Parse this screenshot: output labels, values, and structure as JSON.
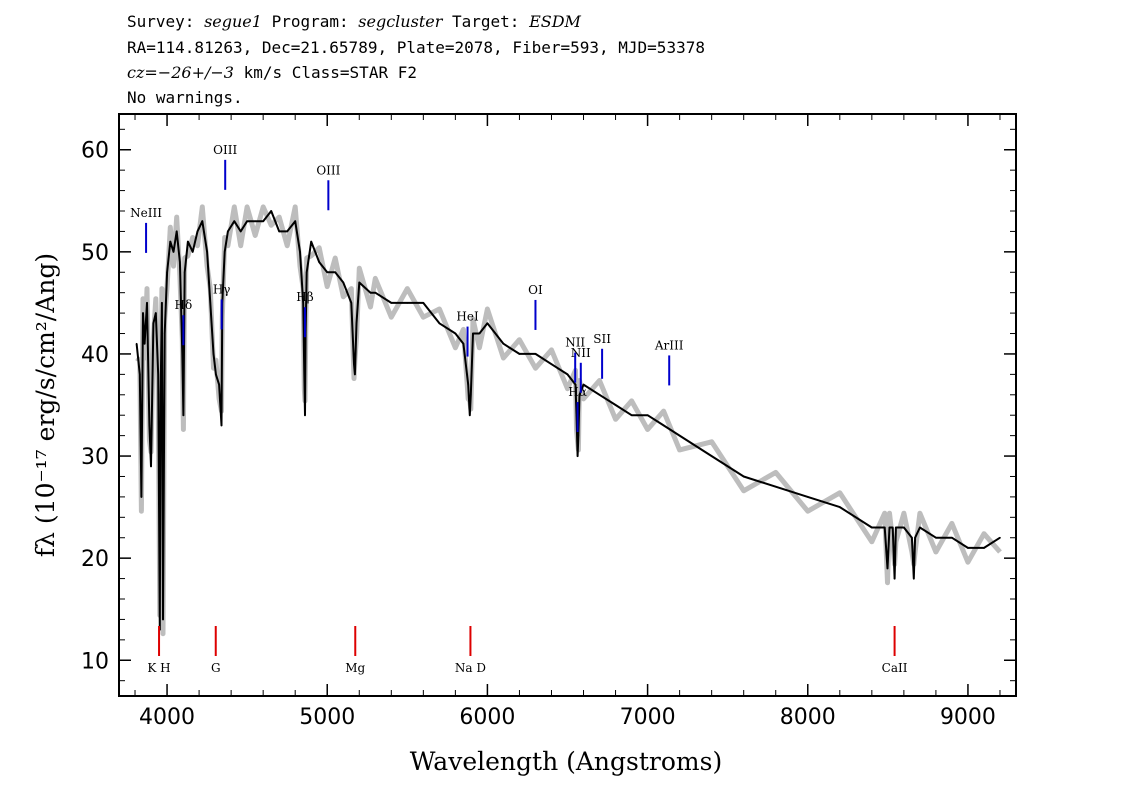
{
  "header": {
    "line1": {
      "survey_label": "Survey:",
      "survey": "segue1",
      "program_label": "Program:",
      "program": "segcluster",
      "target_label": "Target:",
      "target": "ESDM"
    },
    "line2": "RA=114.81263, Dec=21.65789, Plate=2078, Fiber=593, MJD=53378",
    "line3": {
      "cz": "cz=−26+/−3",
      "rest": " km/s Class=STAR F2"
    },
    "line4": "No warnings."
  },
  "chart_data": {
    "type": "line",
    "xlabel": "Wavelength (Angstroms)",
    "ylabel": "fλ (10⁻¹⁷ erg/s/cm²/Ang)",
    "xlim": [
      3700,
      9300
    ],
    "ylim": [
      6.5,
      63.5
    ],
    "x_ticks": [
      4000,
      5000,
      6000,
      7000,
      8000,
      9000
    ],
    "y_ticks": [
      10,
      20,
      30,
      40,
      50,
      60
    ],
    "x_tick_labels": [
      "4000",
      "5000",
      "6000",
      "7000",
      "8000",
      "9000"
    ],
    "y_tick_labels": [
      "10",
      "20",
      "30",
      "40",
      "50",
      "60"
    ],
    "series": [
      {
        "color": "#000000",
        "x": [
          3810,
          3830,
          3840,
          3850,
          3860,
          3875,
          3890,
          3900,
          3915,
          3930,
          3945,
          3955,
          3960,
          3968,
          3975,
          3985,
          4000,
          4020,
          4040,
          4060,
          4080,
          4095,
          4102,
          4110,
          4130,
          4160,
          4190,
          4220,
          4250,
          4270,
          4290,
          4305,
          4325,
          4340,
          4345,
          4360,
          4380,
          4420,
          4460,
          4500,
          4550,
          4600,
          4650,
          4700,
          4750,
          4800,
          4830,
          4850,
          4857,
          4861,
          4865,
          4872,
          4900,
          4950,
          5000,
          5050,
          5100,
          5150,
          5167,
          5173,
          5183,
          5200,
          5270,
          5300,
          5400,
          5500,
          5600,
          5700,
          5800,
          5850,
          5880,
          5890,
          5896,
          5910,
          5950,
          6000,
          6100,
          6200,
          6300,
          6400,
          6500,
          6550,
          6556,
          6563,
          6568,
          6575,
          6600,
          6700,
          6800,
          6900,
          7000,
          7100,
          7200,
          7400,
          7600,
          7800,
          8000,
          8200,
          8400,
          8480,
          8498,
          8510,
          8530,
          8542,
          8550,
          8600,
          8650,
          8662,
          8670,
          8700,
          8800,
          8900,
          9000,
          9100,
          9200
        ],
        "y": [
          41,
          38,
          26,
          44,
          41,
          45,
          33,
          29,
          43,
          44,
          38,
          13,
          36,
          45,
          14,
          42,
          48,
          51,
          50,
          52,
          49,
          40,
          34,
          48,
          51,
          50,
          52,
          53,
          50,
          45,
          40,
          38,
          37,
          33,
          45,
          50,
          52,
          53,
          52,
          53,
          53,
          53,
          54,
          52,
          52,
          53,
          50,
          45,
          38,
          34,
          42,
          48,
          51,
          49,
          48,
          48,
          47,
          45,
          39,
          38,
          43,
          47,
          46,
          46,
          45,
          45,
          45,
          43,
          42,
          41,
          37,
          34,
          36,
          42,
          42,
          43,
          41,
          40,
          40,
          39,
          38,
          37,
          34,
          30,
          32,
          36,
          37,
          36,
          35,
          34,
          34,
          33,
          32,
          30,
          28,
          27,
          26,
          25,
          23,
          23,
          19,
          23,
          23,
          18,
          23,
          23,
          22,
          18,
          22,
          23,
          22,
          22,
          21,
          21,
          22
        ]
      }
    ],
    "lines_blue": [
      {
        "label": "NeIII",
        "x": 3869
      },
      {
        "label": "Hδ",
        "x": 4102
      },
      {
        "label": "Hγ",
        "x": 4341
      },
      {
        "label": "OIII",
        "x": 4363
      },
      {
        "label": "Hβ",
        "x": 4861
      },
      {
        "label": "OIII",
        "x": 5007
      },
      {
        "label": "HeI",
        "x": 5876
      },
      {
        "label": "OI",
        "x": 6300
      },
      {
        "label": "NII",
        "x": 6548
      },
      {
        "label": "Hα",
        "x": 6563
      },
      {
        "label": "NII",
        "x": 6583
      },
      {
        "label": "SII",
        "x": 6716
      },
      {
        "label": "ArIII",
        "x": 7135
      }
    ],
    "lines_red": [
      {
        "label": "K H",
        "x": 3950
      },
      {
        "label": "G",
        "x": 4304
      },
      {
        "label": "Mg",
        "x": 5175
      },
      {
        "label": "Na D",
        "x": 5894
      },
      {
        "label": "CaII",
        "x": 8542
      }
    ],
    "colors": {
      "spectrum": "#000000",
      "noise": "#bdbdbd",
      "emission": "#0000cc",
      "absorption": "#dd0000"
    }
  }
}
